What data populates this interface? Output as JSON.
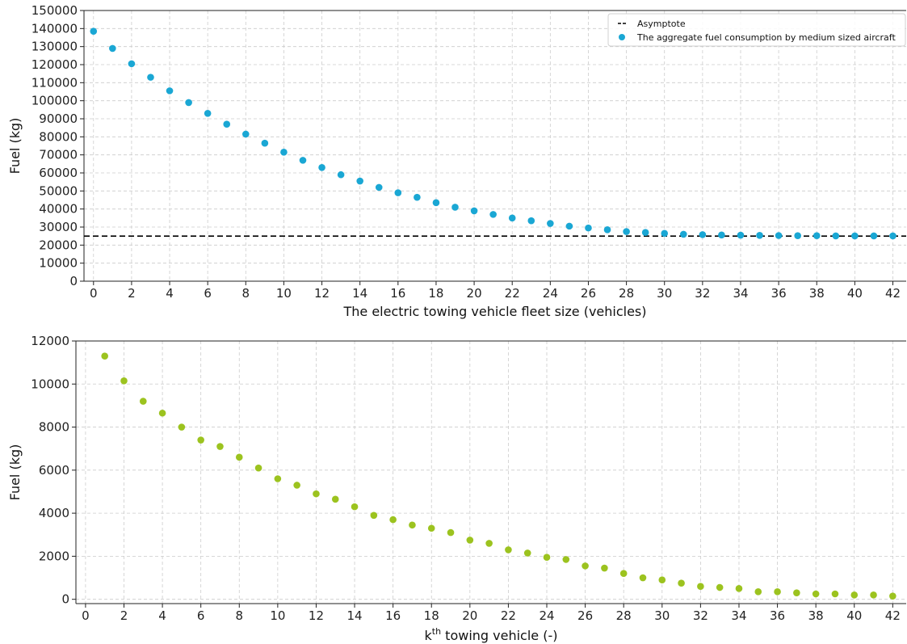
{
  "chart_data": [
    {
      "type": "scatter",
      "title": "",
      "xlabel": "The electric towing vehicle fleet size (vehicles)",
      "ylabel": "Fuel (kg)",
      "xlim": [
        -0.5,
        42.7
      ],
      "ylim": [
        0,
        150000
      ],
      "xticks": [
        0,
        2,
        4,
        6,
        8,
        10,
        12,
        14,
        16,
        18,
        20,
        22,
        24,
        26,
        28,
        30,
        32,
        34,
        36,
        38,
        40,
        42
      ],
      "yticks": [
        0,
        10000,
        20000,
        30000,
        40000,
        50000,
        60000,
        70000,
        80000,
        90000,
        100000,
        110000,
        120000,
        130000,
        140000,
        150000
      ],
      "grid": true,
      "legend_position": "top-right",
      "asymptote": {
        "name": "Asymptote",
        "y": 25000,
        "color": "#000000"
      },
      "series": [
        {
          "name": "The aggregate fuel consumption by medium sized aircraft",
          "color": "#1aa7d4",
          "x": [
            0,
            1,
            2,
            3,
            4,
            5,
            6,
            7,
            8,
            9,
            10,
            11,
            12,
            13,
            14,
            15,
            16,
            17,
            18,
            19,
            20,
            21,
            22,
            23,
            24,
            25,
            26,
            27,
            28,
            29,
            30,
            31,
            32,
            33,
            34,
            35,
            36,
            37,
            38,
            39,
            40,
            41,
            42
          ],
          "y": [
            138500,
            129000,
            120500,
            113000,
            105500,
            99000,
            93000,
            87000,
            81500,
            76500,
            71500,
            67000,
            63000,
            59000,
            55500,
            52000,
            49000,
            46500,
            43500,
            41000,
            39000,
            37000,
            35000,
            33500,
            32000,
            30500,
            29500,
            28500,
            27500,
            27000,
            26500,
            26000,
            25800,
            25600,
            25500,
            25400,
            25300,
            25200,
            25200,
            25100,
            25100,
            25100,
            25100
          ]
        }
      ]
    },
    {
      "type": "scatter",
      "title": "",
      "xlabel_prefix": "k",
      "xlabel_sup": "th",
      "xlabel_suffix": " towing vehicle (-)",
      "ylabel": "Fuel (kg)",
      "xlim": [
        -0.5,
        42.7
      ],
      "ylim": [
        -200,
        12000
      ],
      "xticks": [
        0,
        2,
        4,
        6,
        8,
        10,
        12,
        14,
        16,
        18,
        20,
        22,
        24,
        26,
        28,
        30,
        32,
        34,
        36,
        38,
        40,
        42
      ],
      "yticks": [
        0,
        2000,
        4000,
        6000,
        8000,
        10000,
        12000
      ],
      "grid": true,
      "series": [
        {
          "color": "#9cc31f",
          "x": [
            1,
            2,
            3,
            4,
            5,
            6,
            7,
            8,
            9,
            10,
            11,
            12,
            13,
            14,
            15,
            16,
            17,
            18,
            19,
            20,
            21,
            22,
            23,
            24,
            25,
            26,
            27,
            28,
            29,
            30,
            31,
            32,
            33,
            34,
            35,
            36,
            37,
            38,
            39,
            40,
            41,
            42
          ],
          "y": [
            11300,
            10150,
            9200,
            8650,
            8000,
            7400,
            7100,
            6600,
            6100,
            5600,
            5300,
            4900,
            4650,
            4300,
            3900,
            3700,
            3450,
            3300,
            3100,
            2750,
            2600,
            2300,
            2150,
            1950,
            1850,
            1550,
            1450,
            1200,
            1000,
            900,
            750,
            600,
            550,
            500,
            350,
            350,
            300,
            250,
            250,
            200,
            200,
            150
          ]
        }
      ]
    }
  ]
}
